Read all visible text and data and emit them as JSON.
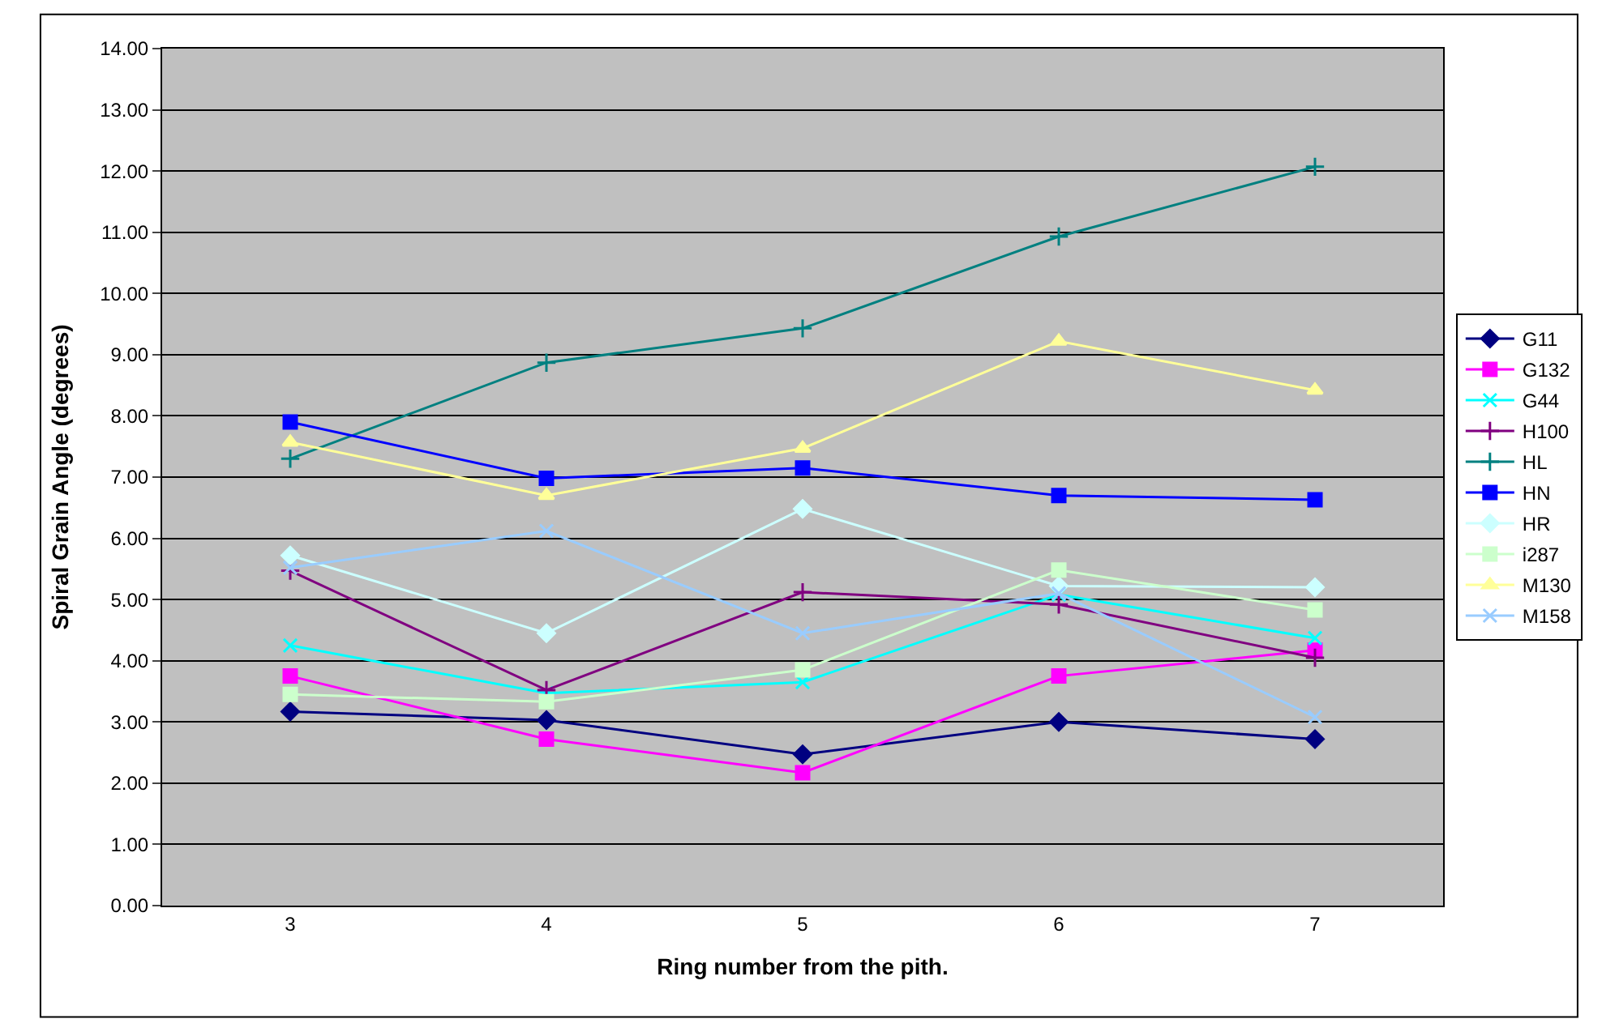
{
  "chart_data": {
    "type": "line",
    "xlabel": "Ring number from the pith.",
    "ylabel": "Spiral Grain Angle (degrees)",
    "categories": [
      "3",
      "4",
      "5",
      "6",
      "7"
    ],
    "ylim": [
      0,
      14
    ],
    "yticks": [
      {
        "value": 0,
        "label": "0.00"
      },
      {
        "value": 1,
        "label": "1.00"
      },
      {
        "value": 2,
        "label": "2.00"
      },
      {
        "value": 3,
        "label": "3.00"
      },
      {
        "value": 4,
        "label": "4.00"
      },
      {
        "value": 5,
        "label": "5.00"
      },
      {
        "value": 6,
        "label": "6.00"
      },
      {
        "value": 7,
        "label": "7.00"
      },
      {
        "value": 8,
        "label": "8.00"
      },
      {
        "value": 9,
        "label": "9.00"
      },
      {
        "value": 10,
        "label": "10.00"
      },
      {
        "value": 11,
        "label": "11.00"
      },
      {
        "value": 12,
        "label": "12.00"
      },
      {
        "value": 13,
        "label": "13.00"
      },
      {
        "value": 14,
        "label": "14.00"
      }
    ],
    "grid": "y",
    "legend": "right",
    "line_style": "solid",
    "series": [
      {
        "name": "G11",
        "color": "#000080",
        "marker": "diamond",
        "values": [
          3.17,
          3.03,
          2.47,
          3.0,
          2.72
        ]
      },
      {
        "name": "G132",
        "color": "#ff00ff",
        "marker": "square",
        "values": [
          3.75,
          2.72,
          2.17,
          3.75,
          4.17
        ]
      },
      {
        "name": "G44",
        "color": "#00ffff",
        "marker": "x",
        "values": [
          4.25,
          3.47,
          3.65,
          5.08,
          4.37
        ]
      },
      {
        "name": "H100",
        "color": "#800080",
        "marker": "cross",
        "values": [
          5.47,
          3.52,
          5.12,
          4.92,
          4.05
        ]
      },
      {
        "name": "HL",
        "color": "#008080",
        "marker": "cross",
        "values": [
          7.3,
          8.87,
          9.43,
          10.93,
          12.07
        ]
      },
      {
        "name": "HN",
        "color": "#0000ff",
        "marker": "square",
        "values": [
          7.9,
          6.98,
          7.15,
          6.7,
          6.63
        ]
      },
      {
        "name": "HR",
        "color": "#ccffff",
        "marker": "diamond",
        "values": [
          5.72,
          4.45,
          6.48,
          5.22,
          5.2
        ]
      },
      {
        "name": "i287",
        "color": "#ccffcc",
        "marker": "square",
        "values": [
          3.45,
          3.33,
          3.85,
          5.48,
          4.83
        ]
      },
      {
        "name": "M130",
        "color": "#ffff99",
        "marker": "triangle",
        "values": [
          7.57,
          6.7,
          7.47,
          9.22,
          8.42
        ]
      },
      {
        "name": "M158",
        "color": "#99ccff",
        "marker": "x",
        "values": [
          5.52,
          6.12,
          4.45,
          5.1,
          3.08
        ]
      }
    ]
  }
}
